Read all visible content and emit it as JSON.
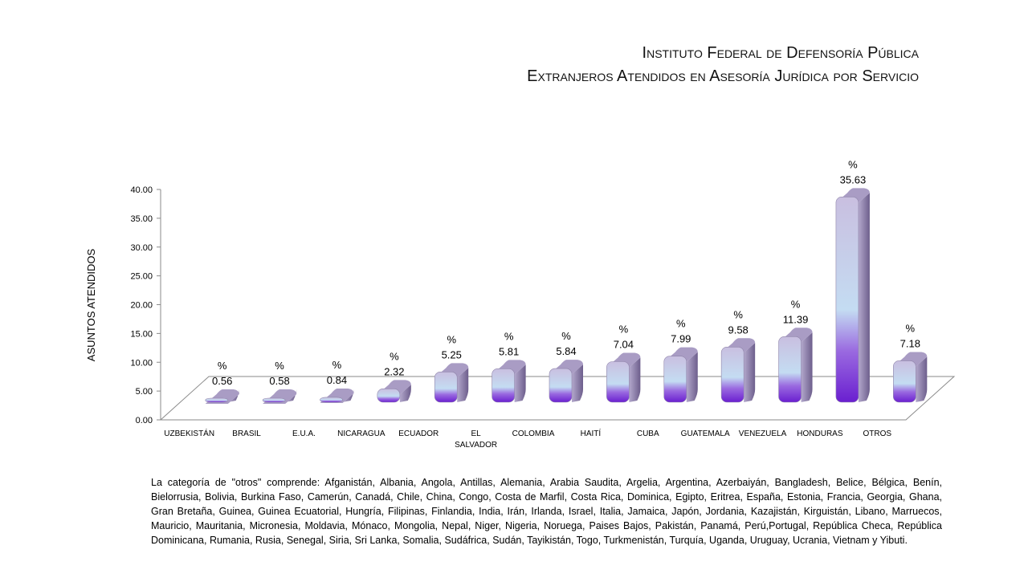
{
  "title": {
    "line1": "Instituto Federal de Defensoría Pública",
    "line2": "Extranjeros Atendidos en Asesoría Jurídica por Servicio"
  },
  "chart_data": {
    "type": "bar",
    "title": "Extranjeros Atendidos en Asesoría Jurídica por Servicio",
    "xlabel": "",
    "ylabel": "ASUNTOS ATENDIDOS",
    "ylim": [
      0,
      40
    ],
    "yticks": [
      "0.00",
      "5.00",
      "10.00",
      "15.00",
      "20.00",
      "25.00",
      "30.00",
      "35.00",
      "40.00"
    ],
    "categories": [
      "UZBEKISTÁN",
      "BRASIL",
      "E.U.A.",
      "NICARAGUA",
      "ECUADOR",
      "EL SALVADOR",
      "COLOMBIA",
      "HAITÍ",
      "CUBA",
      "GUATEMALA",
      "VENEZUELA",
      "HONDURAS",
      "OTROS"
    ],
    "values": [
      0.56,
      0.58,
      0.84,
      2.32,
      5.25,
      5.81,
      5.84,
      7.04,
      7.99,
      9.58,
      11.39,
      35.63,
      7.18
    ],
    "data_labels": [
      "%\n0.56",
      "%\n0.58",
      "%\n0.84",
      "%\n2.32",
      "%\n5.25",
      "%\n5.81",
      "%\n5.84",
      "%\n7.04",
      "%\n7.99",
      "%\n9.58",
      "%\n11.39",
      "%\n35.63",
      "%\n7.18"
    ],
    "grid": false,
    "legend": "none",
    "colors": {
      "bar_top": "#c9bfe0",
      "bar_mid": "#c4dcf2",
      "bar_bottom": "#6a1fd0",
      "bar_side": "#7a6a9a"
    }
  },
  "footnote": "La categoría de \"otros\" comprende: Afganistán, Albania, Angola, Antillas, Alemania, Arabia Saudita, Argelia, Argentina, Azerbaiyán, Bangladesh, Belice, Bélgica, Benín, Bielorrusia, Bolivia, Burkina Faso, Camerún, Canadá, Chile, China, Congo, Costa de Marfil, Costa Rica, Dominica, Egipto, Eritrea, España, Estonia, Francia, Georgia, Ghana, Gran Bretaña, Guinea, Guinea Ecuatorial, Hungría, Filipinas, Finlandia, India, Irán, Irlanda, Israel, Italia, Jamaica, Japón, Jordania, Kazajistán,  Kirguistán, Libano, Marruecos, Mauricio, Mauritania, Micronesia, Moldavia, Mónaco, Mongolia, Nepal, Niger, Nigeria, Noruega, Paises Bajos, Pakistán, Panamá, Perú,Portugal, República Checa, República Dominicana, Rumania, Rusia, Senegal, Siria, Sri Lanka, Somalia, Sudáfrica, Sudán, Tayikistán, Togo, Turkmenistán, Turquía, Uganda, Uruguay, Ucrania, Vietnam y Yibuti."
}
